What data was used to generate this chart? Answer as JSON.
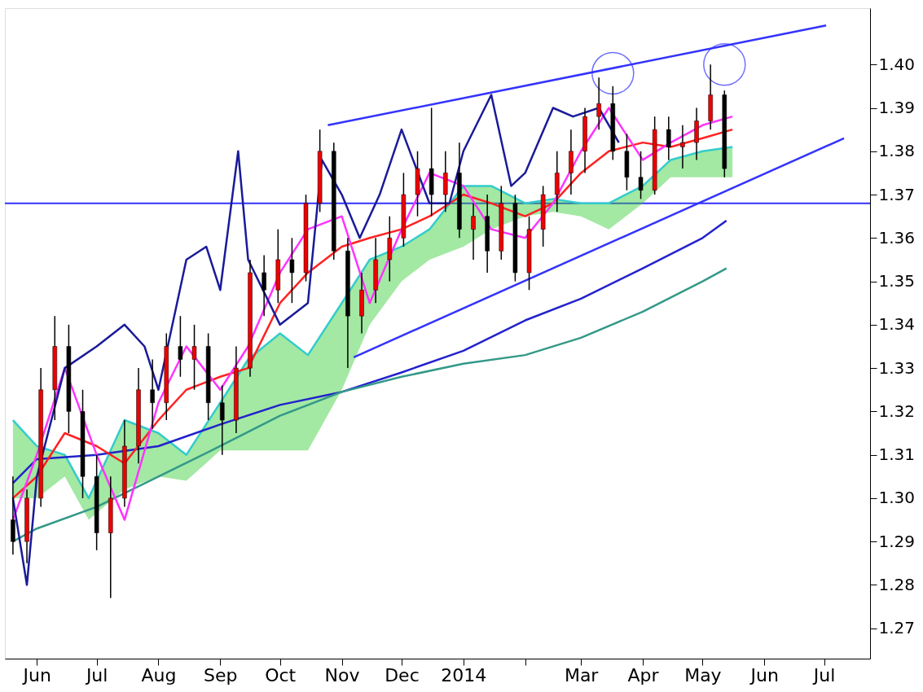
{
  "chart_data": {
    "type": "candlestick",
    "x": [
      "2013-05-20",
      "2013-05-27",
      "2013-06-03",
      "2013-06-10",
      "2013-06-17",
      "2013-06-24",
      "2013-07-01",
      "2013-07-08",
      "2013-07-15",
      "2013-07-22",
      "2013-07-29",
      "2013-08-05",
      "2013-08-12",
      "2013-08-19",
      "2013-08-26",
      "2013-09-02",
      "2013-09-09",
      "2013-09-16",
      "2013-09-23",
      "2013-09-30",
      "2013-10-07",
      "2013-10-14",
      "2013-10-21",
      "2013-10-28",
      "2013-11-04",
      "2013-11-11",
      "2013-11-18",
      "2013-11-25",
      "2013-12-02",
      "2013-12-09",
      "2013-12-16",
      "2013-12-23",
      "2013-12-30",
      "2014-01-06",
      "2014-01-13",
      "2014-01-20",
      "2014-01-27",
      "2014-02-03",
      "2014-02-10",
      "2014-02-17",
      "2014-02-24",
      "2014-03-03",
      "2014-03-10",
      "2014-03-17",
      "2014-03-24",
      "2014-03-31",
      "2014-04-07",
      "2014-04-14",
      "2014-04-21",
      "2014-04-28",
      "2014-05-05",
      "2014-05-12"
    ],
    "ohlc": [
      [
        1.295,
        1.305,
        1.287,
        1.29
      ],
      [
        1.29,
        1.302,
        1.285,
        1.3
      ],
      [
        1.3,
        1.33,
        1.298,
        1.325
      ],
      [
        1.325,
        1.342,
        1.318,
        1.335
      ],
      [
        1.335,
        1.34,
        1.315,
        1.32
      ],
      [
        1.32,
        1.325,
        1.3,
        1.305
      ],
      [
        1.305,
        1.31,
        1.288,
        1.292
      ],
      [
        1.292,
        1.305,
        1.277,
        1.3
      ],
      [
        1.3,
        1.318,
        1.298,
        1.312
      ],
      [
        1.312,
        1.33,
        1.308,
        1.325
      ],
      [
        1.325,
        1.332,
        1.316,
        1.322
      ],
      [
        1.322,
        1.338,
        1.318,
        1.335
      ],
      [
        1.335,
        1.342,
        1.328,
        1.332
      ],
      [
        1.332,
        1.34,
        1.325,
        1.335
      ],
      [
        1.335,
        1.338,
        1.318,
        1.322
      ],
      [
        1.322,
        1.326,
        1.31,
        1.318
      ],
      [
        1.318,
        1.335,
        1.315,
        1.33
      ],
      [
        1.33,
        1.355,
        1.328,
        1.352
      ],
      [
        1.352,
        1.356,
        1.342,
        1.348
      ],
      [
        1.348,
        1.362,
        1.345,
        1.355
      ],
      [
        1.355,
        1.36,
        1.345,
        1.352
      ],
      [
        1.352,
        1.37,
        1.35,
        1.368
      ],
      [
        1.368,
        1.385,
        1.366,
        1.38
      ],
      [
        1.38,
        1.382,
        1.355,
        1.357
      ],
      [
        1.357,
        1.36,
        1.33,
        1.342
      ],
      [
        1.342,
        1.352,
        1.338,
        1.348
      ],
      [
        1.348,
        1.36,
        1.345,
        1.355
      ],
      [
        1.355,
        1.365,
        1.35,
        1.36
      ],
      [
        1.36,
        1.375,
        1.358,
        1.37
      ],
      [
        1.37,
        1.38,
        1.365,
        1.376
      ],
      [
        1.376,
        1.39,
        1.365,
        1.37
      ],
      [
        1.37,
        1.38,
        1.366,
        1.375
      ],
      [
        1.375,
        1.382,
        1.36,
        1.362
      ],
      [
        1.362,
        1.368,
        1.355,
        1.365
      ],
      [
        1.365,
        1.37,
        1.352,
        1.357
      ],
      [
        1.357,
        1.372,
        1.355,
        1.368
      ],
      [
        1.368,
        1.37,
        1.35,
        1.352
      ],
      [
        1.352,
        1.365,
        1.348,
        1.362
      ],
      [
        1.362,
        1.372,
        1.358,
        1.37
      ],
      [
        1.37,
        1.38,
        1.366,
        1.375
      ],
      [
        1.375,
        1.385,
        1.37,
        1.38
      ],
      [
        1.38,
        1.39,
        1.375,
        1.388
      ],
      [
        1.388,
        1.397,
        1.385,
        1.391
      ],
      [
        1.391,
        1.395,
        1.378,
        1.38
      ],
      [
        1.38,
        1.384,
        1.371,
        1.374
      ],
      [
        1.374,
        1.38,
        1.369,
        1.371
      ],
      [
        1.371,
        1.388,
        1.37,
        1.385
      ],
      [
        1.385,
        1.388,
        1.378,
        1.381
      ],
      [
        1.381,
        1.386,
        1.376,
        1.382
      ],
      [
        1.382,
        1.39,
        1.378,
        1.387
      ],
      [
        1.387,
        1.4,
        1.385,
        1.393
      ],
      [
        1.393,
        1.394,
        1.374,
        1.376
      ]
    ],
    "series": [
      {
        "type": "line",
        "color": "#33cccc",
        "x": [
          "2013-05-20",
          "2013-06-01",
          "2013-06-15",
          "2013-06-27",
          "2013-07-15",
          "2013-08-01",
          "2013-08-15",
          "2013-09-01",
          "2013-09-15",
          "2013-10-01",
          "2013-10-15",
          "2013-11-01",
          "2013-11-15",
          "2013-12-01",
          "2013-12-15",
          "2014-01-01",
          "2014-01-15",
          "2014-02-01",
          "2014-02-15",
          "2014-03-01",
          "2014-03-15",
          "2014-04-01",
          "2014-04-15",
          "2014-05-01",
          "2014-05-16"
        ],
        "lower": [
          1.3,
          1.3,
          1.305,
          1.295,
          1.302,
          1.305,
          1.304,
          1.311,
          1.311,
          1.311,
          1.311,
          1.325,
          1.34,
          1.35,
          1.355,
          1.358,
          1.362,
          1.365,
          1.366,
          1.365,
          1.362,
          1.368,
          1.374,
          1.374,
          1.374
        ],
        "values": [
          1.318,
          1.312,
          1.31,
          1.3,
          1.318,
          1.315,
          1.31,
          1.322,
          1.332,
          1.338,
          1.333,
          1.345,
          1.355,
          1.358,
          1.362,
          1.372,
          1.372,
          1.368,
          1.369,
          1.368,
          1.368,
          1.372,
          1.378,
          1.38,
          1.381
        ],
        "upper": [
          1.318,
          1.312,
          1.31,
          1.3,
          1.318,
          1.315,
          1.31,
          1.322,
          1.332,
          1.338,
          1.333,
          1.345,
          1.355,
          1.358,
          1.362,
          1.372,
          1.372,
          1.368,
          1.369,
          1.368,
          1.368,
          1.372,
          1.378,
          1.38,
          1.381
        ]
      },
      {
        "type": "line",
        "color": "#2222cc",
        "x": [
          "2013-05-20",
          "2013-06-01",
          "2013-07-01",
          "2013-08-01",
          "2013-09-01",
          "2013-10-01",
          "2013-11-01",
          "2013-12-01",
          "2014-01-01",
          "2014-02-01",
          "2014-03-01",
          "2014-04-01",
          "2014-05-01",
          "2014-05-13"
        ],
        "values": [
          1.3035,
          1.309,
          1.31,
          1.312,
          1.317,
          1.3215,
          1.3245,
          1.329,
          1.334,
          1.341,
          1.346,
          1.353,
          1.36,
          1.364
        ]
      },
      {
        "type": "line",
        "color": "#339988",
        "x": [
          "2013-05-20",
          "2013-06-01",
          "2013-07-01",
          "2013-08-01",
          "2013-09-01",
          "2013-10-01",
          "2013-11-01",
          "2013-12-01",
          "2014-01-01",
          "2014-02-01",
          "2014-03-01",
          "2014-04-01",
          "2014-05-01",
          "2014-05-13"
        ],
        "values": [
          1.29,
          1.293,
          1.298,
          1.305,
          1.312,
          1.319,
          1.3245,
          1.328,
          1.331,
          1.333,
          1.337,
          1.343,
          1.35,
          1.353
        ]
      },
      {
        "type": "line",
        "color": "#ff2222",
        "x": [
          "2013-05-20",
          "2013-06-01",
          "2013-06-15",
          "2013-07-01",
          "2013-07-15",
          "2013-08-01",
          "2013-08-15",
          "2013-09-01",
          "2013-09-15",
          "2013-10-01",
          "2013-10-15",
          "2013-11-01",
          "2013-11-15",
          "2013-12-01",
          "2013-12-15",
          "2014-01-01",
          "2014-01-15",
          "2014-02-01",
          "2014-02-15",
          "2014-03-01",
          "2014-03-15",
          "2014-04-01",
          "2014-04-15",
          "2014-05-01",
          "2014-05-16"
        ],
        "values": [
          1.3,
          1.305,
          1.315,
          1.312,
          1.308,
          1.318,
          1.325,
          1.328,
          1.33,
          1.345,
          1.352,
          1.358,
          1.36,
          1.362,
          1.365,
          1.37,
          1.368,
          1.365,
          1.368,
          1.375,
          1.38,
          1.382,
          1.381,
          1.383,
          1.385
        ]
      },
      {
        "type": "line",
        "color": "#ff33ff",
        "x": [
          "2013-05-20",
          "2013-06-01",
          "2013-06-15",
          "2013-07-01",
          "2013-07-15",
          "2013-08-01",
          "2013-08-15",
          "2013-09-01",
          "2013-09-15",
          "2013-10-01",
          "2013-10-15",
          "2013-11-01",
          "2013-11-15",
          "2013-12-01",
          "2013-12-15",
          "2014-01-01",
          "2014-01-15",
          "2014-02-01",
          "2014-02-15",
          "2014-03-01",
          "2014-03-15",
          "2014-04-01",
          "2014-04-15",
          "2014-05-01",
          "2014-05-16"
        ],
        "values": [
          1.295,
          1.31,
          1.33,
          1.31,
          1.295,
          1.322,
          1.335,
          1.325,
          1.335,
          1.352,
          1.362,
          1.365,
          1.345,
          1.362,
          1.375,
          1.372,
          1.362,
          1.36,
          1.368,
          1.38,
          1.39,
          1.378,
          1.382,
          1.386,
          1.388
        ]
      },
      {
        "type": "line",
        "color": "#1a1a99",
        "x": [
          "2013-05-20",
          "2013-05-27",
          "2013-06-01",
          "2013-06-15",
          "2013-07-01",
          "2013-07-15",
          "2013-07-25",
          "2013-08-01",
          "2013-08-15",
          "2013-08-25",
          "2013-09-01",
          "2013-09-10",
          "2013-09-15",
          "2013-10-01",
          "2013-10-15",
          "2013-10-22",
          "2013-11-01",
          "2013-11-10",
          "2013-11-20",
          "2013-12-01",
          "2013-12-15",
          "2013-12-25",
          "2014-01-01",
          "2014-01-15",
          "2014-01-25",
          "2014-02-01",
          "2014-02-15",
          "2014-02-25",
          "2014-03-10",
          "2014-03-20"
        ],
        "values": [
          1.3,
          1.28,
          1.305,
          1.33,
          1.335,
          1.34,
          1.335,
          1.325,
          1.355,
          1.358,
          1.348,
          1.38,
          1.355,
          1.34,
          1.345,
          1.378,
          1.37,
          1.36,
          1.37,
          1.385,
          1.368,
          1.368,
          1.38,
          1.393,
          1.372,
          1.375,
          1.39,
          1.388,
          1.39,
          1.382
        ]
      },
      {
        "type": "line",
        "color": "#3333ff",
        "x": [
          "2013-10-25",
          "2014-07-02"
        ],
        "values": [
          1.386,
          1.409
        ]
      },
      {
        "type": "line",
        "color": "#3333ff",
        "x": [
          "2013-11-07",
          "2014-07-11"
        ],
        "values": [
          1.3325,
          1.383
        ]
      },
      {
        "type": "scatter",
        "marker": "circle",
        "color": "#3333ff",
        "x": [
          "2014-03-17",
          "2014-05-12"
        ],
        "values": [
          1.398,
          1.4
        ]
      }
    ],
    "ref_lines": [
      {
        "axis": "y",
        "value": 1.368,
        "color": "#3333ff"
      }
    ],
    "xlim": [
      "2013-05-18",
      "2014-07-22"
    ],
    "xticks": [
      {
        "value": "2013-06-01",
        "label": "Jun"
      },
      {
        "value": "2013-07-01",
        "label": "Jul"
      },
      {
        "value": "2013-08-01",
        "label": "Aug"
      },
      {
        "value": "2013-09-01",
        "label": "Sep"
      },
      {
        "value": "2013-10-01",
        "label": "Oct"
      },
      {
        "value": "2013-11-01",
        "label": "Nov"
      },
      {
        "value": "2013-12-01",
        "label": "Dec"
      },
      {
        "value": "2014-01-01",
        "label": "2014"
      },
      {
        "value": "2014-02-01",
        "label": null
      },
      {
        "value": "2014-03-01",
        "label": "Mar"
      },
      {
        "value": "2014-04-01",
        "label": "Apr"
      },
      {
        "value": "2014-05-01",
        "label": "May"
      },
      {
        "value": "2014-06-01",
        "label": "Jun"
      },
      {
        "value": "2014-07-01",
        "label": "Jul"
      }
    ],
    "ylim": [
      1.263,
      1.413
    ],
    "yticks": [
      {
        "value": 1.27,
        "label": "1.27"
      },
      {
        "value": 1.28,
        "label": "1.28"
      },
      {
        "value": 1.29,
        "label": "1.29"
      },
      {
        "value": 1.3,
        "label": "1.30"
      },
      {
        "value": 1.31,
        "label": "1.31"
      },
      {
        "value": 1.32,
        "label": "1.32"
      },
      {
        "value": 1.33,
        "label": "1.33"
      },
      {
        "value": 1.34,
        "label": "1.34"
      },
      {
        "value": 1.35,
        "label": "1.35"
      },
      {
        "value": 1.36,
        "label": "1.36"
      },
      {
        "value": 1.37,
        "label": "1.37"
      },
      {
        "value": 1.38,
        "label": "1.38"
      },
      {
        "value": 1.39,
        "label": "1.39"
      },
      {
        "value": 1.4,
        "label": "1.40"
      }
    ],
    "grid": false
  }
}
